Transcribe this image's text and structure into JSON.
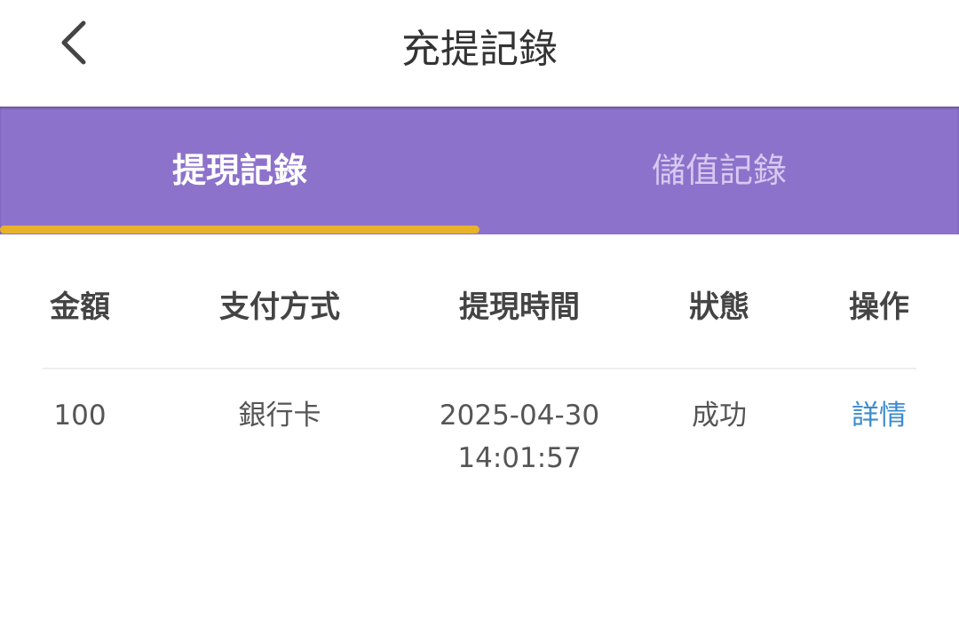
{
  "header": {
    "title": "充提記錄",
    "back_icon": "chevron-left-icon"
  },
  "tabs": [
    {
      "label": "提現記錄",
      "active": true
    },
    {
      "label": "儲值記錄",
      "active": false
    }
  ],
  "colors": {
    "tab_bar": "#8d72cc",
    "indicator": "#e8b22a",
    "link": "#3a8bd0"
  },
  "table": {
    "columns": [
      "金額",
      "支付方式",
      "提現時間",
      "狀態",
      "操作"
    ],
    "rows": [
      {
        "amount": "100",
        "method": "銀行卡",
        "date": "2025-04-30",
        "time": "14:01:57",
        "status": "成功",
        "action": "詳情"
      }
    ]
  }
}
